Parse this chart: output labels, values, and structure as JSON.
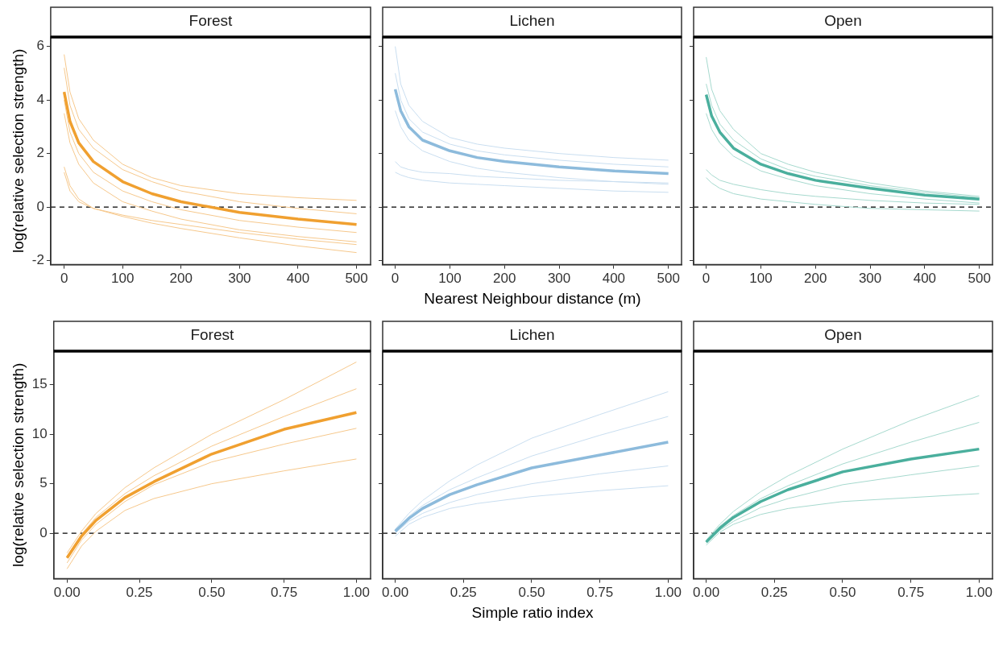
{
  "chart_data": [
    {
      "type": "line",
      "title": "Forest",
      "ylabel": "log(relative selection strength)",
      "x": [
        0,
        10,
        25,
        50,
        100,
        150,
        200,
        300,
        400,
        500
      ],
      "xlim": [
        -23,
        524
      ],
      "ylim": [
        -2.15,
        6.35
      ],
      "xticks": [
        0,
        100,
        200,
        300,
        400,
        500
      ],
      "yticks": [
        -2,
        0,
        2,
        4,
        6
      ],
      "grid": false,
      "marker": "none",
      "line_style": "solid",
      "ref_lines": [
        {
          "axis": "y",
          "value": 0,
          "color": "#000000",
          "line_style": "dashed"
        }
      ],
      "series": [
        {
          "color": "#f0a030",
          "values": [
            4.3,
            3.2,
            2.4,
            1.7,
            0.95,
            0.5,
            0.2,
            -0.2,
            -0.45,
            -0.65
          ]
        },
        {
          "color": "#f6c88c",
          "values": [
            5.7,
            4.3,
            3.3,
            2.5,
            1.6,
            1.1,
            0.8,
            0.5,
            0.35,
            0.25
          ]
        },
        {
          "color": "#f6c88c",
          "values": [
            5.2,
            3.8,
            2.9,
            2.2,
            1.4,
            0.95,
            0.6,
            0.2,
            -0.05,
            -0.25
          ]
        },
        {
          "color": "#f6c88c",
          "values": [
            4.0,
            2.8,
            2.0,
            1.3,
            0.6,
            0.2,
            -0.1,
            -0.5,
            -0.75,
            -0.95
          ]
        },
        {
          "color": "#f6c88c",
          "values": [
            3.5,
            2.4,
            1.6,
            0.9,
            0.2,
            -0.15,
            -0.45,
            -0.85,
            -1.1,
            -1.3
          ]
        },
        {
          "color": "#f6c88c",
          "values": [
            1.5,
            0.8,
            0.3,
            -0.05,
            -0.35,
            -0.6,
            -0.8,
            -1.15,
            -1.45,
            -1.7
          ]
        },
        {
          "color": "#f6c88c",
          "values": [
            1.3,
            0.6,
            0.2,
            -0.05,
            -0.3,
            -0.5,
            -0.65,
            -0.95,
            -1.2,
            -1.4
          ]
        }
      ]
    },
    {
      "type": "line",
      "title": "Lichen",
      "xlabel": "Nearest Neighbour distance (m)",
      "tick_labels": "x",
      "x": [
        0,
        10,
        25,
        50,
        100,
        150,
        200,
        300,
        400,
        500
      ],
      "xlim": [
        -23,
        524
      ],
      "ylim": [
        -2.15,
        6.35
      ],
      "xticks": [
        0,
        100,
        200,
        300,
        400,
        500
      ],
      "yticks": [
        -2,
        0,
        2,
        4,
        6
      ],
      "grid": false,
      "marker": "none",
      "line_style": "solid",
      "ref_lines": [
        {
          "axis": "y",
          "value": 0,
          "color": "#000000",
          "line_style": "dashed"
        }
      ],
      "series": [
        {
          "color": "#8dbbdc",
          "values": [
            4.4,
            3.6,
            3.0,
            2.5,
            2.1,
            1.85,
            1.7,
            1.5,
            1.35,
            1.25
          ]
        },
        {
          "color": "#c9def0",
          "values": [
            6.0,
            4.6,
            3.8,
            3.2,
            2.6,
            2.35,
            2.2,
            2.0,
            1.85,
            1.75
          ]
        },
        {
          "color": "#c9def0",
          "values": [
            5.0,
            4.0,
            3.3,
            2.8,
            2.35,
            2.1,
            1.95,
            1.75,
            1.6,
            1.5
          ]
        },
        {
          "color": "#c9def0",
          "values": [
            3.6,
            3.0,
            2.5,
            2.1,
            1.7,
            1.45,
            1.3,
            1.1,
            0.95,
            0.85
          ]
        },
        {
          "color": "#c9def0",
          "values": [
            1.7,
            1.5,
            1.4,
            1.3,
            1.25,
            1.15,
            1.1,
            1.0,
            0.95,
            0.9
          ]
        },
        {
          "color": "#c9def0",
          "values": [
            1.3,
            1.2,
            1.1,
            1.0,
            0.9,
            0.85,
            0.8,
            0.7,
            0.6,
            0.55
          ]
        }
      ]
    },
    {
      "type": "line",
      "title": "Open",
      "tick_labels": "x",
      "x": [
        0,
        10,
        25,
        50,
        100,
        150,
        200,
        300,
        400,
        500
      ],
      "xlim": [
        -23,
        524
      ],
      "ylim": [
        -2.15,
        6.35
      ],
      "xticks": [
        0,
        100,
        200,
        300,
        400,
        500
      ],
      "yticks": [
        -2,
        0,
        2,
        4,
        6
      ],
      "grid": false,
      "marker": "none",
      "line_style": "solid",
      "ref_lines": [
        {
          "axis": "y",
          "value": 0,
          "color": "#000000",
          "line_style": "dashed"
        }
      ],
      "series": [
        {
          "color": "#4aaf9d",
          "values": [
            4.2,
            3.4,
            2.8,
            2.2,
            1.6,
            1.25,
            1.0,
            0.7,
            0.45,
            0.3
          ]
        },
        {
          "color": "#a6d9ce",
          "values": [
            5.6,
            4.4,
            3.6,
            2.9,
            2.0,
            1.6,
            1.3,
            0.9,
            0.6,
            0.4
          ]
        },
        {
          "color": "#a6d9ce",
          "values": [
            4.6,
            3.8,
            3.1,
            2.5,
            1.8,
            1.4,
            1.15,
            0.8,
            0.55,
            0.35
          ]
        },
        {
          "color": "#a6d9ce",
          "values": [
            3.5,
            2.9,
            2.4,
            1.9,
            1.35,
            1.05,
            0.8,
            0.5,
            0.3,
            0.15
          ]
        },
        {
          "color": "#a6d9ce",
          "values": [
            1.4,
            1.2,
            1.0,
            0.85,
            0.65,
            0.5,
            0.4,
            0.25,
            0.15,
            0.1
          ]
        },
        {
          "color": "#a6d9ce",
          "values": [
            1.1,
            0.9,
            0.7,
            0.5,
            0.3,
            0.2,
            0.1,
            -0.05,
            -0.1,
            -0.15
          ]
        }
      ]
    },
    {
      "type": "line",
      "title": "Forest",
      "ylabel": "log(relative selection strength)",
      "x": [
        0,
        0.05,
        0.1,
        0.2,
        0.3,
        0.5,
        0.75,
        1
      ],
      "xlim": [
        -0.046,
        1.049
      ],
      "ylim": [
        -4.6,
        18.4
      ],
      "xticks": [
        {
          "value": 0,
          "label": "0.00"
        },
        0.25,
        {
          "value": 0.5,
          "label": "0.50"
        },
        0.75,
        {
          "value": 1,
          "label": "1.00"
        }
      ],
      "yticks": [
        0,
        5,
        10,
        15
      ],
      "grid": false,
      "marker": "none",
      "line_style": "solid",
      "ref_lines": [
        {
          "axis": "y",
          "value": 0,
          "color": "#000000",
          "line_style": "dashed"
        }
      ],
      "series": [
        {
          "color": "#f0a030",
          "values": [
            -2.5,
            -0.3,
            1.3,
            3.6,
            5.2,
            8.0,
            10.5,
            12.2
          ]
        },
        {
          "color": "#f6c88c",
          "values": [
            -2.0,
            0.2,
            2.0,
            4.6,
            6.6,
            10.0,
            13.5,
            17.3
          ]
        },
        {
          "color": "#f6c88c",
          "values": [
            -2.3,
            -0.1,
            1.6,
            4.0,
            5.8,
            8.8,
            11.8,
            14.6
          ]
        },
        {
          "color": "#f6c88c",
          "values": [
            -3.0,
            -0.7,
            0.9,
            3.2,
            4.9,
            7.2,
            9.0,
            10.6
          ]
        },
        {
          "color": "#f6c88c",
          "values": [
            -3.6,
            -1.3,
            0.2,
            2.3,
            3.5,
            5.0,
            6.3,
            7.5
          ]
        }
      ]
    },
    {
      "type": "line",
      "title": "Lichen",
      "xlabel": "Simple ratio index",
      "tick_labels": "x",
      "x": [
        0,
        0.05,
        0.1,
        0.2,
        0.3,
        0.5,
        0.75,
        1
      ],
      "xlim": [
        -0.046,
        1.049
      ],
      "ylim": [
        -4.6,
        18.4
      ],
      "xticks": [
        {
          "value": 0,
          "label": "0.00"
        },
        0.25,
        {
          "value": 0.5,
          "label": "0.50"
        },
        0.75,
        {
          "value": 1,
          "label": "1.00"
        }
      ],
      "yticks": [
        0,
        5,
        10,
        15
      ],
      "grid": false,
      "marker": "none",
      "line_style": "solid",
      "ref_lines": [
        {
          "axis": "y",
          "value": 0,
          "color": "#000000",
          "line_style": "dashed"
        }
      ],
      "series": [
        {
          "color": "#8dbbdc",
          "values": [
            0.2,
            1.5,
            2.5,
            3.9,
            4.9,
            6.6,
            7.9,
            9.2
          ]
        },
        {
          "color": "#c9def0",
          "values": [
            0.4,
            2.0,
            3.3,
            5.3,
            6.9,
            9.6,
            12.0,
            14.3
          ]
        },
        {
          "color": "#c9def0",
          "values": [
            0.3,
            1.7,
            2.8,
            4.4,
            5.6,
            7.8,
            9.9,
            11.8
          ]
        },
        {
          "color": "#c9def0",
          "values": [
            0,
            1.2,
            2.0,
            3.1,
            3.9,
            5.0,
            6.0,
            6.8
          ]
        },
        {
          "color": "#c9def0",
          "values": [
            -0.3,
            0.9,
            1.6,
            2.5,
            3.0,
            3.7,
            4.3,
            4.8
          ]
        }
      ]
    },
    {
      "type": "line",
      "title": "Open",
      "tick_labels": "x",
      "x": [
        0,
        0.05,
        0.1,
        0.2,
        0.3,
        0.5,
        0.75,
        1
      ],
      "xlim": [
        -0.046,
        1.049
      ],
      "ylim": [
        -4.6,
        18.4
      ],
      "xticks": [
        {
          "value": 0,
          "label": "0.00"
        },
        0.25,
        {
          "value": 0.5,
          "label": "0.50"
        },
        0.75,
        {
          "value": 1,
          "label": "1.00"
        }
      ],
      "yticks": [
        0,
        5,
        10,
        15
      ],
      "grid": false,
      "marker": "none",
      "line_style": "solid",
      "ref_lines": [
        {
          "axis": "y",
          "value": 0,
          "color": "#000000",
          "line_style": "dashed"
        }
      ],
      "series": [
        {
          "color": "#4aaf9d",
          "values": [
            -0.9,
            0.5,
            1.6,
            3.2,
            4.4,
            6.2,
            7.5,
            8.5
          ]
        },
        {
          "color": "#a6d9ce",
          "values": [
            -0.7,
            0.9,
            2.2,
            4.2,
            5.8,
            8.5,
            11.4,
            13.9
          ]
        },
        {
          "color": "#a6d9ce",
          "values": [
            -0.8,
            0.7,
            1.8,
            3.5,
            4.8,
            7.0,
            9.2,
            11.2
          ]
        },
        {
          "color": "#a6d9ce",
          "values": [
            -1.0,
            0.3,
            1.2,
            2.6,
            3.5,
            4.9,
            5.9,
            6.8
          ]
        },
        {
          "color": "#a6d9ce",
          "values": [
            -1.2,
            0.1,
            0.9,
            1.9,
            2.5,
            3.2,
            3.6,
            4.0
          ]
        }
      ]
    }
  ]
}
